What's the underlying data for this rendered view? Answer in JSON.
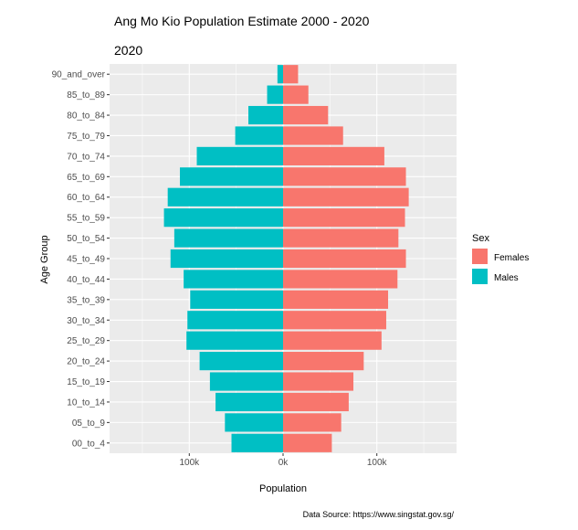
{
  "chart_data": {
    "type": "bar",
    "orientation": "horizontal-pyramid",
    "title": "Ang Mo Kio Population Estimate 2000 - 2020",
    "subtitle": "2020",
    "xlabel": "Population",
    "ylabel": "Age Group",
    "caption": "Data Source: https://www.singstat.gov.sg/",
    "xlim": [
      -185000,
      185000
    ],
    "x_ticks": [
      {
        "value": -100000,
        "label": "100k"
      },
      {
        "value": 0,
        "label": "0k"
      },
      {
        "value": 100000,
        "label": "100k"
      }
    ],
    "categories": [
      "00_to_4",
      "05_to_9",
      "10_to_14",
      "15_to_19",
      "20_to_24",
      "25_to_29",
      "30_to_34",
      "35_to_39",
      "40_to_44",
      "45_to_49",
      "50_to_54",
      "55_to_59",
      "60_to_64",
      "65_to_69",
      "70_to_74",
      "75_to_79",
      "80_to_84",
      "85_to_89",
      "90_and_over"
    ],
    "series": [
      {
        "name": "Females",
        "color": "#F8766D",
        "values": [
          52000,
          62000,
          70000,
          75000,
          86000,
          105000,
          110000,
          112000,
          122000,
          131000,
          123000,
          130000,
          134000,
          131000,
          108000,
          64000,
          48000,
          27000,
          16000
        ]
      },
      {
        "name": "Males",
        "color": "#00BFC4",
        "values": [
          55000,
          62000,
          72000,
          78000,
          89000,
          103000,
          102000,
          99000,
          106000,
          120000,
          116000,
          127000,
          123000,
          110000,
          92000,
          51000,
          37000,
          17000,
          6000
        ]
      }
    ],
    "grid": true,
    "legend": {
      "title": "Sex",
      "position": "right",
      "entries": [
        "Females",
        "Males"
      ]
    }
  }
}
